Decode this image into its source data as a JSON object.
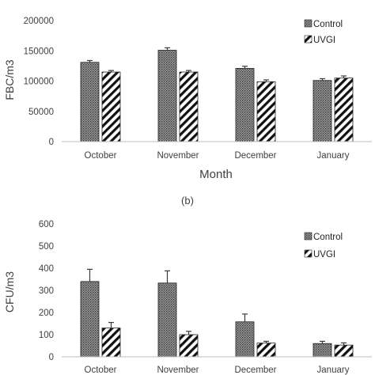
{
  "colors": {
    "axis": "#bfbfbf",
    "text": "#404040",
    "control_bar_fill": "#9a9a9a",
    "control_bar_dots": "#3a3a3a",
    "uvgi_bar_stripes": "#111111",
    "error_bar": "#3a3a3a"
  },
  "chart_data": [
    {
      "type": "bar",
      "panel_label": "",
      "categories": [
        "October",
        "November",
        "December",
        "January"
      ],
      "series": [
        {
          "name": "Control",
          "pattern": "dotted",
          "values": [
            131000,
            151000,
            121000,
            101000
          ],
          "errors": [
            3000,
            4000,
            3500,
            3000
          ]
        },
        {
          "name": "UVGI",
          "pattern": "diagonal-stripes",
          "values": [
            115000,
            115000,
            99000,
            105000
          ],
          "errors": [
            2500,
            2500,
            3000,
            3500
          ]
        }
      ],
      "xlabel": "Month",
      "ylabel": "FBC/m3",
      "ylim": [
        0,
        200000
      ],
      "yticks": [
        0,
        50000,
        100000,
        150000,
        200000
      ],
      "ytick_labels": [
        "0",
        "50000",
        "100000",
        "150000",
        "200000"
      ],
      "legend_position": "top-right",
      "grid": false
    },
    {
      "type": "bar",
      "panel_label": "(b)",
      "categories": [
        "October",
        "November",
        "December",
        "January"
      ],
      "series": [
        {
          "name": "Control",
          "pattern": "dotted",
          "values": [
            340,
            333,
            158,
            60
          ],
          "errors": [
            55,
            55,
            35,
            10
          ]
        },
        {
          "name": "UVGI",
          "pattern": "diagonal-stripes",
          "values": [
            130,
            100,
            62,
            53
          ],
          "errors": [
            25,
            15,
            8,
            10
          ]
        }
      ],
      "xlabel": "",
      "ylabel": "CFU/m3",
      "ylim": [
        0,
        600
      ],
      "yticks": [
        0,
        100,
        200,
        300,
        400,
        500,
        600
      ],
      "ytick_labels": [
        "0",
        "100",
        "200",
        "300",
        "400",
        "500",
        "600"
      ],
      "legend_position": "top-right",
      "grid": false
    }
  ]
}
